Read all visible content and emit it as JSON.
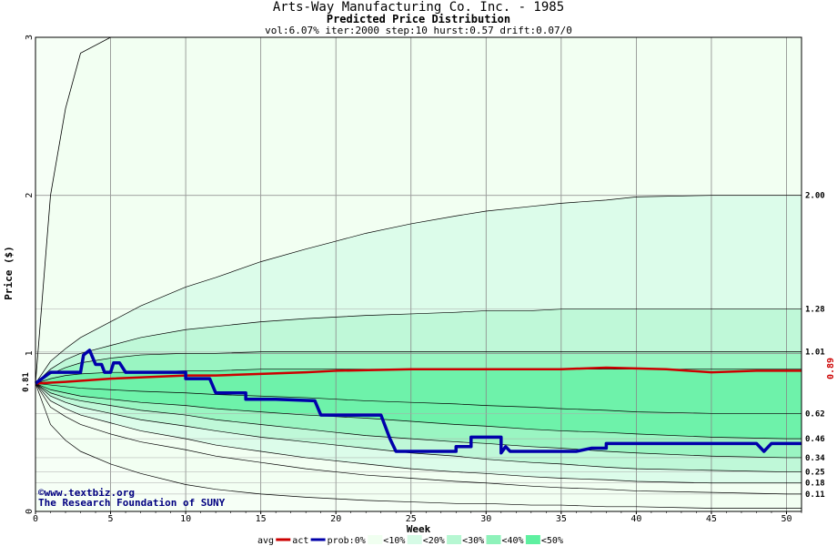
{
  "chart_data": {
    "type": "line",
    "title": "Arts-Way Manufacturing Co. Inc. - 1985",
    "subtitle": "Predicted Price Distribution",
    "params": "vol:6.07% iter:2000 step:10 hurst:0.57 drift:0.07/0",
    "xlabel": "Week",
    "ylabel": "Price ($)",
    "xlim": [
      0,
      51
    ],
    "ylim": [
      0,
      3
    ],
    "x_ticks": [
      0,
      5,
      10,
      15,
      20,
      25,
      30,
      35,
      40,
      45,
      50
    ],
    "y_ticks": [
      0,
      1,
      2,
      3
    ],
    "start_price": 0.81,
    "start_label": "0.81",
    "last_price": 0.89,
    "last_price_label": "0.89",
    "right_labels": [
      {
        "value": 2.0,
        "label": "2.00"
      },
      {
        "value": 1.28,
        "label": "1.28"
      },
      {
        "value": 1.01,
        "label": "1.01"
      },
      {
        "value": 0.62,
        "label": "0.62"
      },
      {
        "value": 0.46,
        "label": "0.46"
      },
      {
        "value": 0.34,
        "label": "0.34"
      },
      {
        "value": 0.25,
        "label": "0.25"
      },
      {
        "value": 0.18,
        "label": "0.18"
      },
      {
        "value": 0.11,
        "label": "0.11"
      }
    ],
    "bands": [
      {
        "name": "<10%",
        "color": "#f0fff0",
        "upper": [
          0.81,
          2.9,
          3.0
        ],
        "upper_x": [
          0,
          3,
          4
        ],
        "lower": [
          0.81,
          0.02,
          0.0
        ],
        "lower_x": [
          0,
          51,
          51
        ]
      },
      {
        "name": "<20%",
        "color": "#d6fbe6"
      },
      {
        "name": "<30%",
        "color": "#b6f7d2"
      },
      {
        "name": "<40%",
        "color": "#8ef2ba"
      },
      {
        "name": "<50%",
        "color": "#5ef0a0"
      }
    ],
    "percentile_curves": {
      "x": [
        0,
        1,
        2,
        3,
        5,
        7,
        10,
        12,
        15,
        18,
        20,
        22,
        25,
        28,
        30,
        33,
        35,
        38,
        40,
        45,
        50,
        51
      ],
      "p_top": [
        0.81,
        2.0,
        2.55,
        2.9,
        3.0,
        3.0,
        3.0,
        3.0,
        3.0,
        3.0,
        3.0,
        3.0,
        3.0,
        3.0,
        3.0,
        3.0,
        3.0,
        3.0,
        3.0,
        3.0,
        3.0,
        3.0
      ],
      "p90": [
        0.81,
        0.95,
        1.03,
        1.1,
        1.2,
        1.3,
        1.42,
        1.48,
        1.58,
        1.66,
        1.71,
        1.76,
        1.82,
        1.87,
        1.9,
        1.93,
        1.95,
        1.97,
        1.99,
        2.0,
        2.0,
        2.0
      ],
      "p80": [
        0.81,
        0.9,
        0.96,
        1.0,
        1.05,
        1.1,
        1.15,
        1.17,
        1.2,
        1.22,
        1.23,
        1.24,
        1.25,
        1.26,
        1.27,
        1.27,
        1.28,
        1.28,
        1.28,
        1.28,
        1.28,
        1.28
      ],
      "p70": [
        0.81,
        0.87,
        0.91,
        0.94,
        0.97,
        0.99,
        1.0,
        1.0,
        1.01,
        1.01,
        1.01,
        1.01,
        1.01,
        1.01,
        1.01,
        1.01,
        1.01,
        1.01,
        1.01,
        1.01,
        1.01,
        1.01
      ],
      "p60": [
        0.81,
        0.84,
        0.86,
        0.87,
        0.88,
        0.88,
        0.89,
        0.89,
        0.9,
        0.9,
        0.9,
        0.9,
        0.9,
        0.9,
        0.9,
        0.9,
        0.9,
        0.9,
        0.9,
        0.9,
        0.9,
        0.9
      ],
      "p50": [
        0.81,
        0.8,
        0.79,
        0.78,
        0.77,
        0.76,
        0.75,
        0.74,
        0.73,
        0.72,
        0.71,
        0.7,
        0.69,
        0.68,
        0.67,
        0.66,
        0.65,
        0.64,
        0.63,
        0.62,
        0.62,
        0.62
      ],
      "p40": [
        0.81,
        0.77,
        0.75,
        0.73,
        0.71,
        0.69,
        0.67,
        0.65,
        0.63,
        0.61,
        0.6,
        0.59,
        0.57,
        0.55,
        0.54,
        0.52,
        0.51,
        0.5,
        0.49,
        0.47,
        0.46,
        0.46
      ],
      "p30": [
        0.81,
        0.75,
        0.72,
        0.7,
        0.67,
        0.64,
        0.61,
        0.58,
        0.55,
        0.52,
        0.5,
        0.48,
        0.46,
        0.44,
        0.43,
        0.41,
        0.4,
        0.38,
        0.37,
        0.35,
        0.34,
        0.34
      ],
      "p20": [
        0.81,
        0.73,
        0.69,
        0.66,
        0.62,
        0.58,
        0.54,
        0.51,
        0.47,
        0.44,
        0.42,
        0.4,
        0.37,
        0.35,
        0.33,
        0.31,
        0.3,
        0.28,
        0.27,
        0.26,
        0.25,
        0.25
      ],
      "p10": [
        0.81,
        0.7,
        0.65,
        0.61,
        0.56,
        0.51,
        0.46,
        0.42,
        0.38,
        0.34,
        0.32,
        0.3,
        0.27,
        0.25,
        0.24,
        0.22,
        0.21,
        0.2,
        0.19,
        0.18,
        0.18,
        0.18
      ],
      "p5": [
        0.81,
        0.66,
        0.6,
        0.55,
        0.49,
        0.44,
        0.39,
        0.35,
        0.31,
        0.27,
        0.25,
        0.23,
        0.21,
        0.19,
        0.18,
        0.16,
        0.15,
        0.14,
        0.13,
        0.12,
        0.11,
        0.11
      ],
      "p_bottom": [
        0.81,
        0.55,
        0.45,
        0.38,
        0.3,
        0.24,
        0.17,
        0.14,
        0.11,
        0.09,
        0.08,
        0.07,
        0.06,
        0.05,
        0.05,
        0.04,
        0.04,
        0.03,
        0.03,
        0.02,
        0.02,
        0.02
      ]
    },
    "series": [
      {
        "name": "avg",
        "color": "#cc0000",
        "x": [
          0,
          2,
          5,
          10,
          12,
          15,
          18,
          20,
          25,
          30,
          35,
          38,
          42,
          45,
          48,
          50,
          51
        ],
        "values": [
          0.81,
          0.82,
          0.84,
          0.86,
          0.86,
          0.87,
          0.88,
          0.89,
          0.9,
          0.9,
          0.9,
          0.91,
          0.9,
          0.88,
          0.89,
          0.89,
          0.89
        ]
      },
      {
        "name": "prob:0%",
        "color": "#0000aa",
        "x": [
          0,
          1,
          3,
          3.2,
          3.6,
          4,
          4.4,
          4.6,
          5,
          5.2,
          5.6,
          6,
          10,
          10,
          11.6,
          12,
          14,
          14,
          16,
          18.6,
          19,
          22,
          23,
          23.6,
          24,
          28,
          28,
          29,
          29,
          31,
          31,
          31.3,
          31.6,
          35,
          36,
          37,
          38,
          38,
          48,
          48.5,
          49,
          51
        ],
        "values": [
          0.81,
          0.88,
          0.88,
          0.99,
          1.02,
          0.93,
          0.93,
          0.88,
          0.88,
          0.94,
          0.94,
          0.88,
          0.88,
          0.84,
          0.84,
          0.75,
          0.75,
          0.71,
          0.71,
          0.7,
          0.61,
          0.61,
          0.61,
          0.46,
          0.38,
          0.38,
          0.41,
          0.41,
          0.47,
          0.47,
          0.37,
          0.41,
          0.38,
          0.38,
          0.38,
          0.4,
          0.4,
          0.43,
          0.43,
          0.38,
          0.43,
          0.43
        ]
      }
    ],
    "legend": [
      "avg",
      "act",
      "prob:0%",
      "<10%",
      "<20%",
      "<30%",
      "<40%",
      "<50%"
    ],
    "credits": [
      "www.textbiz.org",
      "The Research Foundation of SUNY"
    ],
    "copyright_symbol": "©",
    "grid": true
  }
}
